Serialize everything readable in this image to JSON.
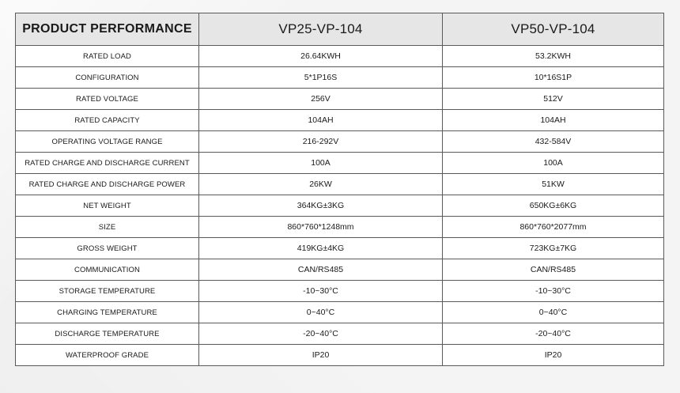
{
  "table": {
    "headers": [
      "PRODUCT PERFORMANCE",
      "VP25-VP-104",
      "VP50-VP-104"
    ],
    "rows": [
      [
        "RATED LOAD",
        "26.64KWH",
        "53.2KWH"
      ],
      [
        "CONFIGURATION",
        "5*1P16S",
        "10*16S1P"
      ],
      [
        "RATED VOLTAGE",
        "256V",
        "512V"
      ],
      [
        "RATED CAPACITY",
        "104AH",
        "104AH"
      ],
      [
        "OPERATING VOLTAGE RANGE",
        "216-292V",
        "432-584V"
      ],
      [
        "RATED CHARGE AND DISCHARGE CURRENT",
        "100A",
        "100A"
      ],
      [
        "RATED CHARGE AND DISCHARGE POWER",
        "26KW",
        "51KW"
      ],
      [
        "NET WEIGHT",
        "364KG±3KG",
        "650KG±6KG"
      ],
      [
        "SIZE",
        "860*760*1248mm",
        "860*760*2077mm"
      ],
      [
        "GROSS WEIGHT",
        "419KG±4KG",
        "723KG±7KG"
      ],
      [
        "COMMUNICATION",
        "CAN/RS485",
        "CAN/RS485"
      ],
      [
        "STORAGE TEMPERATURE",
        "-10~30°C",
        "-10~30°C"
      ],
      [
        "CHARGING TEMPERATURE",
        "0~40°C",
        "0~40°C"
      ],
      [
        "DISCHARGE TEMPERATURE",
        "-20~40°C",
        "-20~40°C"
      ],
      [
        "WATERPROOF GRADE",
        "IP20",
        "IP20"
      ]
    ]
  }
}
